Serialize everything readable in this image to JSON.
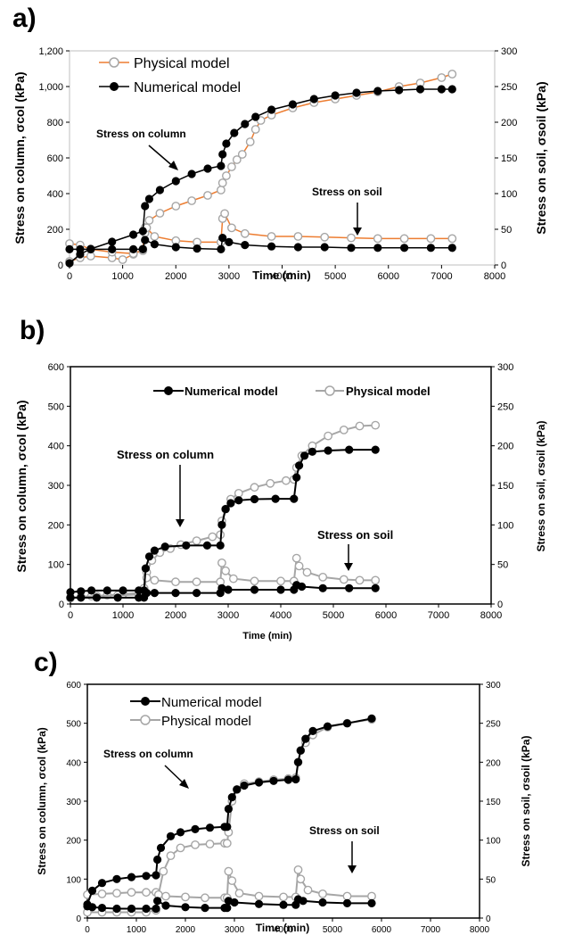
{
  "panels": [
    {
      "id": "a",
      "label": "a)",
      "xlabel": "Time (min)",
      "ylabel_left": "Stress on column, σcol (kPa)",
      "ylabel_right": "Stress on soil, σsoil (kPa)",
      "left_ticks": [
        "0",
        "200",
        "400",
        "600",
        "800",
        "1,000",
        "1,200"
      ],
      "right_ticks": [
        "0",
        "50",
        "100",
        "150",
        "200",
        "250",
        "300"
      ],
      "x_ticks": [
        "0",
        "1000",
        "2000",
        "3000",
        "4000",
        "5000",
        "6000",
        "7000",
        "8000"
      ],
      "legend": [
        "Physical model",
        "Numerical model"
      ],
      "annotations": [
        "Stress on column",
        "Stress on soil"
      ]
    },
    {
      "id": "b",
      "label": "b)",
      "xlabel": "Time (min)",
      "ylabel_left": "Stress on column, σcol (kPa)",
      "ylabel_right": "Stress on soil, σsoil (kPa)",
      "left_ticks": [
        "0",
        "100",
        "200",
        "300",
        "400",
        "500",
        "600"
      ],
      "right_ticks": [
        "0",
        "50",
        "100",
        "150",
        "200",
        "250",
        "300"
      ],
      "x_ticks": [
        "0",
        "1000",
        "2000",
        "3000",
        "4000",
        "5000",
        "6000",
        "7000",
        "8000"
      ],
      "legend": [
        "Numerical model",
        "Physical model"
      ],
      "annotations": [
        "Stress on column",
        "Stress on soil"
      ]
    },
    {
      "id": "c",
      "label": "c)",
      "xlabel": "Time (min)",
      "ylabel_left": "Stress on column, σcol (kPa)",
      "ylabel_right": "Stress on soil, σsoil (kPa)",
      "left_ticks": [
        "0",
        "100",
        "200",
        "300",
        "400",
        "500",
        "600"
      ],
      "right_ticks": [
        "0",
        "50",
        "100",
        "150",
        "200",
        "250",
        "300"
      ],
      "x_ticks": [
        "0",
        "1000",
        "2000",
        "3000",
        "4000",
        "5000",
        "6000",
        "7000",
        "8000"
      ],
      "legend": [
        "Numerical model",
        "Physical model"
      ],
      "annotations": [
        "Stress on column",
        "Stress on soil"
      ]
    }
  ],
  "colors": {
    "numerical": "#000000",
    "physical_marker": "#a6a6a6",
    "physical_line_a": "#ed7d31",
    "physical_line_bc": "#a6a6a6"
  },
  "chart_data": [
    {
      "panel": "a",
      "type": "line",
      "xlim": [
        0,
        8000
      ],
      "ylim_left": [
        0,
        1200
      ],
      "ylim_right": [
        0,
        300
      ],
      "series": [
        {
          "name": "Physical model",
          "quantity": "stress on column",
          "axis": "left",
          "x": [
            0,
            200,
            400,
            800,
            1000,
            1200,
            1380,
            1420,
            1500,
            1700,
            2000,
            2300,
            2600,
            2850,
            2880,
            2950,
            3050,
            3150,
            3250,
            3400,
            3500,
            3600,
            3800,
            4200,
            4600,
            5000,
            5400,
            5800,
            6200,
            6600,
            7000,
            7200
          ],
          "y": [
            20,
            40,
            50,
            40,
            30,
            60,
            90,
            210,
            250,
            290,
            330,
            360,
            390,
            420,
            460,
            500,
            550,
            590,
            620,
            690,
            760,
            810,
            840,
            880,
            910,
            930,
            950,
            970,
            1000,
            1020,
            1050,
            1070
          ]
        },
        {
          "name": "Numerical model",
          "quantity": "stress on column",
          "axis": "left",
          "x": [
            0,
            200,
            400,
            800,
            1200,
            1380,
            1420,
            1500,
            1700,
            2000,
            2300,
            2600,
            2850,
            2880,
            2950,
            3100,
            3300,
            3500,
            3800,
            4200,
            4600,
            5000,
            5400,
            5800,
            6200,
            6600,
            7000,
            7200
          ],
          "y": [
            10,
            60,
            90,
            130,
            170,
            190,
            330,
            370,
            420,
            470,
            510,
            540,
            555,
            620,
            680,
            740,
            790,
            830,
            870,
            900,
            930,
            950,
            965,
            975,
            980,
            985,
            985,
            985
          ]
        },
        {
          "name": "Physical model",
          "quantity": "stress on soil",
          "axis": "right",
          "x": [
            0,
            200,
            400,
            800,
            1200,
            1380,
            1420,
            1450,
            1600,
            2000,
            2400,
            2850,
            2880,
            2920,
            3050,
            3300,
            3800,
            4300,
            4800,
            5300,
            5800,
            6300,
            6800,
            7200
          ],
          "y": [
            30,
            28,
            22,
            18,
            16,
            20,
            45,
            52,
            40,
            34,
            32,
            32,
            65,
            72,
            52,
            44,
            40,
            40,
            39,
            38,
            37,
            37,
            37,
            37
          ]
        },
        {
          "name": "Numerical model",
          "quantity": "stress on soil",
          "axis": "right",
          "x": [
            0,
            200,
            400,
            800,
            1200,
            1380,
            1420,
            1600,
            2000,
            2400,
            2850,
            2880,
            3000,
            3300,
            3800,
            4300,
            4800,
            5300,
            5800,
            6300,
            6800,
            7200
          ],
          "y": [
            22,
            22,
            22,
            22,
            22,
            22,
            35,
            29,
            25,
            23,
            22,
            38,
            32,
            28,
            26,
            25,
            25,
            24,
            24,
            24,
            24,
            24
          ]
        }
      ]
    },
    {
      "panel": "b",
      "type": "line",
      "xlim": [
        0,
        8000
      ],
      "ylim_left": [
        0,
        600
      ],
      "ylim_right": [
        0,
        300
      ],
      "series": [
        {
          "name": "Numerical model",
          "quantity": "stress on column",
          "axis": "left",
          "x": [
            0,
            200,
            400,
            700,
            1000,
            1300,
            1400,
            1430,
            1500,
            1600,
            1800,
            2200,
            2600,
            2850,
            2880,
            2950,
            3050,
            3200,
            3500,
            3900,
            4250,
            4300,
            4350,
            4450,
            4600,
            4900,
            5300,
            5800
          ],
          "y": [
            30,
            32,
            34,
            34,
            34,
            34,
            34,
            90,
            120,
            135,
            145,
            148,
            148,
            148,
            200,
            240,
            255,
            262,
            265,
            266,
            266,
            320,
            350,
            375,
            385,
            388,
            390,
            390
          ]
        },
        {
          "name": "Physical model",
          "quantity": "stress on column",
          "axis": "left",
          "x": [
            0,
            200,
            400,
            700,
            1000,
            1300,
            1400,
            1450,
            1550,
            1700,
            1900,
            2100,
            2400,
            2700,
            2850,
            2880,
            2950,
            3050,
            3200,
            3500,
            3800,
            4100,
            4250,
            4300,
            4400,
            4600,
            4900,
            5200,
            5500,
            5800
          ],
          "y": [
            15,
            18,
            20,
            22,
            25,
            28,
            40,
            80,
            110,
            130,
            140,
            150,
            160,
            170,
            175,
            210,
            240,
            265,
            280,
            295,
            305,
            312,
            315,
            345,
            375,
            400,
            425,
            440,
            450,
            452
          ]
        },
        {
          "name": "Physical model",
          "quantity": "stress on soil",
          "axis": "right",
          "x": [
            0,
            200,
            500,
            900,
            1300,
            1400,
            1450,
            1600,
            2000,
            2400,
            2850,
            2880,
            2950,
            3100,
            3500,
            4000,
            4250,
            4300,
            4350,
            4500,
            4800,
            5200,
            5500,
            5800
          ],
          "y": [
            8,
            9,
            10,
            11,
            12,
            20,
            33,
            30,
            28,
            28,
            28,
            52,
            42,
            32,
            29,
            29,
            29,
            58,
            48,
            40,
            34,
            31,
            30,
            30
          ]
        },
        {
          "name": "Numerical model",
          "quantity": "stress on soil",
          "axis": "right",
          "x": [
            0,
            200,
            500,
            900,
            1300,
            1400,
            1450,
            1600,
            2000,
            2400,
            2850,
            2880,
            3000,
            3500,
            4000,
            4250,
            4300,
            4400,
            4800,
            5300,
            5800
          ],
          "y": [
            8,
            8,
            8,
            8,
            8,
            8,
            14,
            14,
            14,
            14,
            14,
            20,
            18,
            18,
            18,
            18,
            24,
            22,
            20,
            20,
            20
          ]
        }
      ]
    },
    {
      "panel": "c",
      "type": "line",
      "xlim": [
        0,
        8000
      ],
      "ylim_left": [
        0,
        600
      ],
      "ylim_right": [
        0,
        300
      ],
      "series": [
        {
          "name": "Numerical model",
          "quantity": "stress on column",
          "axis": "left",
          "x": [
            0,
            100,
            300,
            600,
            900,
            1200,
            1400,
            1430,
            1500,
            1700,
            1900,
            2200,
            2500,
            2800,
            2850,
            2880,
            2950,
            3050,
            3200,
            3500,
            3800,
            4100,
            4250,
            4300,
            4350,
            4450,
            4600,
            4900,
            5300,
            5800
          ],
          "y": [
            35,
            70,
            90,
            100,
            105,
            108,
            110,
            150,
            180,
            210,
            220,
            228,
            232,
            234,
            234,
            280,
            310,
            330,
            340,
            348,
            352,
            355,
            356,
            400,
            430,
            460,
            480,
            492,
            500,
            512
          ]
        },
        {
          "name": "Physical model",
          "quantity": "stress on column",
          "axis": "left",
          "x": [
            0,
            300,
            600,
            900,
            1200,
            1400,
            1450,
            1550,
            1700,
            1900,
            2200,
            2500,
            2800,
            2850,
            2880,
            2950,
            3050,
            3200,
            3500,
            3800,
            4100,
            4250,
            4300,
            4350,
            4450,
            4600,
            4900,
            5300,
            5800
          ],
          "y": [
            15,
            15,
            15,
            15,
            15,
            20,
            60,
            120,
            160,
            180,
            188,
            190,
            192,
            192,
            220,
            300,
            330,
            345,
            350,
            355,
            358,
            360,
            400,
            430,
            450,
            470,
            490,
            500,
            510
          ]
        },
        {
          "name": "Numerical model",
          "quantity": "stress on soil",
          "axis": "right",
          "x": [
            0,
            100,
            300,
            600,
            900,
            1200,
            1400,
            1430,
            1600,
            2000,
            2400,
            2800,
            2850,
            2880,
            3000,
            3500,
            4000,
            4250,
            4300,
            4400,
            4800,
            5300,
            5800
          ],
          "y": [
            15,
            14,
            13,
            12,
            12,
            12,
            12,
            22,
            16,
            14,
            13,
            13,
            13,
            22,
            20,
            18,
            17,
            17,
            24,
            22,
            20,
            19,
            19
          ]
        },
        {
          "name": "Physical model",
          "quantity": "stress on soil",
          "axis": "right",
          "x": [
            0,
            300,
            600,
            900,
            1200,
            1400,
            1450,
            1600,
            2000,
            2400,
            2800,
            2850,
            2880,
            2950,
            3100,
            3500,
            4000,
            4250,
            4300,
            4350,
            4500,
            4800,
            5300,
            5800
          ],
          "y": [
            30,
            31,
            32,
            33,
            33,
            33,
            30,
            28,
            27,
            26,
            26,
            26,
            60,
            48,
            32,
            28,
            27,
            27,
            62,
            50,
            36,
            31,
            28,
            28
          ]
        }
      ]
    }
  ]
}
